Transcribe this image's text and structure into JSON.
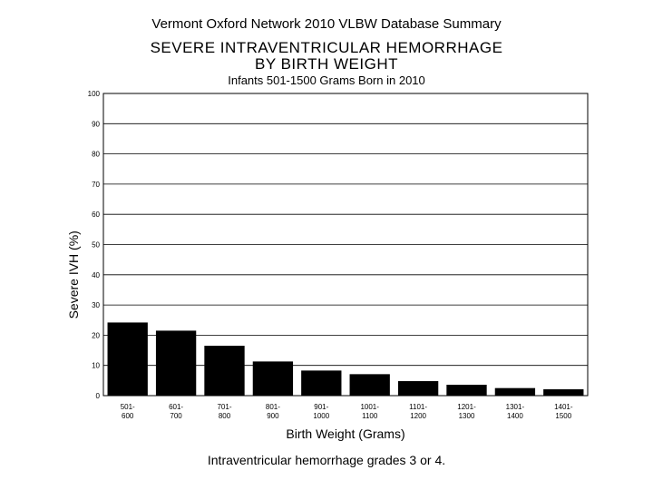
{
  "header": "Vermont Oxford Network 2010 VLBW Database Summary",
  "chart_data": {
    "type": "bar",
    "title_line1": "SEVERE INTRAVENTRICULAR HEMORRHAGE",
    "title_line2": "BY BIRTH WEIGHT",
    "subtitle": "Infants 501-1500 Grams Born in 2010",
    "xlabel": "Birth Weight (Grams)",
    "ylabel": "Severe IVH (%)",
    "ylim": [
      0,
      100
    ],
    "yticks": [
      "0",
      "10",
      "20",
      "30",
      "40",
      "50",
      "60",
      "70",
      "80",
      "90",
      "100"
    ],
    "grid": true,
    "categories": [
      [
        "501-",
        "600"
      ],
      [
        "601-",
        "700"
      ],
      [
        "701-",
        "800"
      ],
      [
        "801-",
        "900"
      ],
      [
        "901-",
        "1000"
      ],
      [
        "1001-",
        "1100"
      ],
      [
        "1101-",
        "1200"
      ],
      [
        "1201-",
        "1300"
      ],
      [
        "1301-",
        "1400"
      ],
      [
        "1401-",
        "1500"
      ]
    ],
    "values": [
      24.2,
      21.5,
      16.5,
      11.3,
      8.3,
      7.1,
      4.8,
      3.6,
      2.5,
      2.1
    ],
    "bar_color": "#000000",
    "grid_color": "#000000"
  },
  "footnote": "Intraventricular hemorrhage grades 3 or 4."
}
